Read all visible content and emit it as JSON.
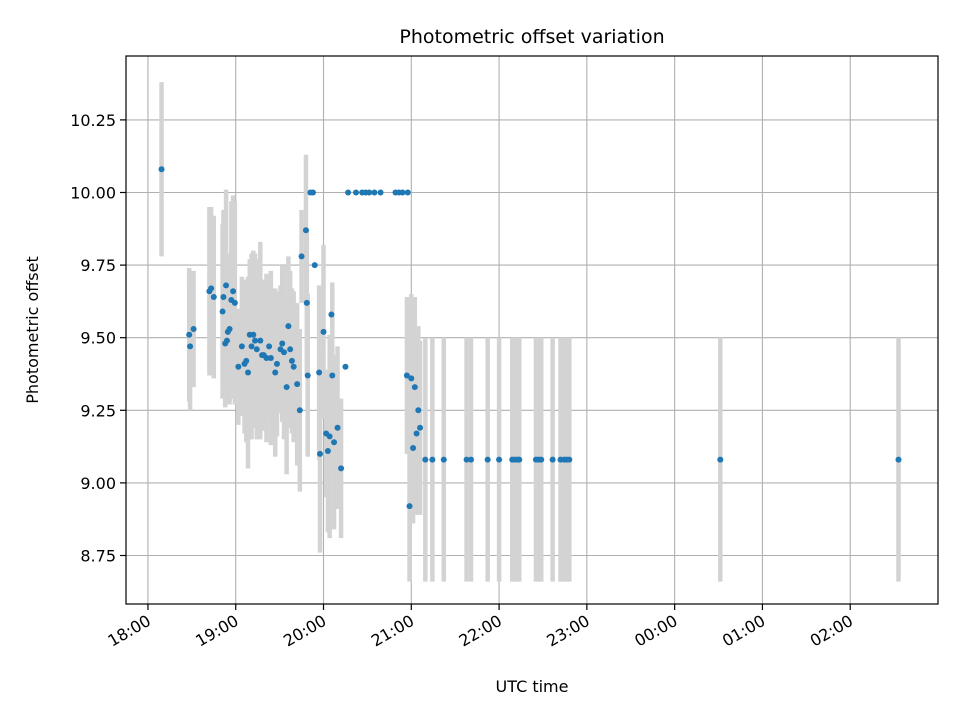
{
  "chart_data": {
    "type": "scatter",
    "title": "Photometric offset variation",
    "xlabel": "UTC time",
    "ylabel": "Photometric offset",
    "x_unit": "hours",
    "xlim": [
      17.75,
      27.0
    ],
    "ylim": [
      8.583,
      10.47
    ],
    "grid": true,
    "legend": "none",
    "x_ticks": [
      {
        "value": 18,
        "label": "18:00"
      },
      {
        "value": 19,
        "label": "19:00"
      },
      {
        "value": 20,
        "label": "20:00"
      },
      {
        "value": 21,
        "label": "21:00"
      },
      {
        "value": 22,
        "label": "22:00"
      },
      {
        "value": 23,
        "label": "23:00"
      },
      {
        "value": 24,
        "label": "00:00"
      },
      {
        "value": 25,
        "label": "01:00"
      },
      {
        "value": 26,
        "label": "02:00"
      }
    ],
    "y_ticks": [
      {
        "value": 8.75,
        "label": "8.75"
      },
      {
        "value": 9.0,
        "label": "9.00"
      },
      {
        "value": 9.25,
        "label": "9.25"
      },
      {
        "value": 9.5,
        "label": "9.50"
      },
      {
        "value": 9.75,
        "label": "9.75"
      },
      {
        "value": 10.0,
        "label": "10.00"
      },
      {
        "value": 10.25,
        "label": "10.25"
      }
    ],
    "colors": {
      "point": "#1f77b4",
      "errorbar": "#d3d3d3",
      "grid": "#b0b0b0",
      "axis": "#000000"
    },
    "points": [
      [
        18.155,
        10.08,
        0.3
      ],
      [
        18.47,
        9.51,
        0.23
      ],
      [
        18.48,
        9.47,
        0.22
      ],
      [
        18.52,
        9.53,
        0.2
      ],
      [
        18.7,
        9.66,
        0.29
      ],
      [
        18.72,
        9.67,
        0.28
      ],
      [
        18.75,
        9.64,
        0.28
      ],
      [
        18.85,
        9.59,
        0.3
      ],
      [
        18.86,
        9.64,
        0.3
      ],
      [
        18.88,
        9.48,
        0.22
      ],
      [
        18.89,
        9.68,
        0.33
      ],
      [
        18.9,
        9.49,
        0.22
      ],
      [
        18.91,
        9.52,
        0.24
      ],
      [
        18.93,
        9.53,
        0.26
      ],
      [
        18.95,
        9.63,
        0.34
      ],
      [
        18.97,
        9.66,
        0.33
      ],
      [
        18.99,
        9.62,
        0.35
      ],
      [
        19.03,
        9.4,
        0.2
      ],
      [
        19.07,
        9.47,
        0.24
      ],
      [
        19.1,
        9.41,
        0.24
      ],
      [
        19.12,
        9.42,
        0.28
      ],
      [
        19.14,
        9.38,
        0.33
      ],
      [
        19.16,
        9.51,
        0.26
      ],
      [
        19.18,
        9.47,
        0.32
      ],
      [
        19.2,
        9.51,
        0.29
      ],
      [
        19.22,
        9.49,
        0.3
      ],
      [
        19.24,
        9.46,
        0.31
      ],
      [
        19.28,
        9.49,
        0.34
      ],
      [
        19.3,
        9.44,
        0.25
      ],
      [
        19.32,
        9.44,
        0.26
      ],
      [
        19.35,
        9.43,
        0.29
      ],
      [
        19.38,
        9.47,
        0.23
      ],
      [
        19.4,
        9.43,
        0.3
      ],
      [
        19.45,
        9.38,
        0.29
      ],
      [
        19.47,
        9.41,
        0.25
      ],
      [
        19.51,
        9.46,
        0.22
      ],
      [
        19.53,
        9.48,
        0.27
      ],
      [
        19.55,
        9.45,
        0.3
      ],
      [
        19.58,
        9.33,
        0.3
      ],
      [
        19.6,
        9.54,
        0.24
      ],
      [
        19.62,
        9.46,
        0.27
      ],
      [
        19.64,
        9.42,
        0.25
      ],
      [
        19.66,
        9.4,
        0.26
      ],
      [
        19.7,
        9.34,
        0.28
      ],
      [
        19.73,
        9.25,
        0.28
      ],
      [
        19.75,
        9.78,
        0.16
      ],
      [
        19.8,
        9.87,
        0.26
      ],
      [
        19.81,
        9.62,
        0.25
      ],
      [
        19.82,
        9.37,
        0.28
      ],
      [
        19.85,
        10.0,
        0.0
      ],
      [
        19.88,
        10.0,
        0.0
      ],
      [
        19.9,
        9.75,
        0.0
      ],
      [
        19.95,
        9.38,
        0.3
      ],
      [
        19.96,
        9.1,
        0.34
      ],
      [
        20.0,
        9.52,
        0.3
      ],
      [
        20.03,
        9.17,
        0.22
      ],
      [
        20.05,
        9.11,
        0.28
      ],
      [
        20.07,
        9.16,
        0.35
      ],
      [
        20.09,
        9.58,
        0.0
      ],
      [
        20.1,
        9.37,
        0.32
      ],
      [
        20.12,
        9.14,
        0.3
      ],
      [
        20.16,
        9.19,
        0.28
      ],
      [
        20.2,
        9.05,
        0.24
      ],
      [
        20.25,
        9.4,
        0.0
      ],
      [
        20.28,
        10.0,
        0.0
      ],
      [
        20.37,
        10.0,
        0.0
      ],
      [
        20.44,
        10.0,
        0.0
      ],
      [
        20.48,
        10.0,
        0.0
      ],
      [
        20.52,
        10.0,
        0.0
      ],
      [
        20.58,
        10.0,
        0.0
      ],
      [
        20.65,
        10.0,
        0.0
      ],
      [
        20.82,
        10.0,
        0.0
      ],
      [
        20.86,
        10.0,
        0.0
      ],
      [
        20.9,
        10.0,
        0.0
      ],
      [
        20.96,
        10.0,
        0.0
      ],
      [
        20.95,
        9.37,
        0.27
      ],
      [
        20.98,
        8.92,
        0.26
      ],
      [
        21.0,
        9.36,
        0.29
      ],
      [
        21.02,
        9.12,
        0.26
      ],
      [
        21.04,
        9.33,
        0.31
      ],
      [
        21.06,
        9.17,
        0.28
      ],
      [
        21.08,
        9.25,
        0.29
      ],
      [
        21.1,
        9.19,
        0.3
      ],
      [
        21.16,
        9.08,
        0.42
      ],
      [
        21.24,
        9.08,
        0.42
      ],
      [
        21.37,
        9.08,
        0.42
      ],
      [
        21.63,
        9.08,
        0.42
      ],
      [
        21.68,
        9.08,
        0.42
      ],
      [
        21.87,
        9.08,
        0.42
      ],
      [
        22.0,
        9.08,
        0.42
      ],
      [
        22.15,
        9.08,
        0.42
      ],
      [
        22.18,
        9.08,
        0.42
      ],
      [
        22.21,
        9.08,
        0.42
      ],
      [
        22.23,
        9.08,
        0.42
      ],
      [
        22.42,
        9.08,
        0.42
      ],
      [
        22.45,
        9.08,
        0.42
      ],
      [
        22.48,
        9.08,
        0.42
      ],
      [
        22.61,
        9.08,
        0.42
      ],
      [
        22.7,
        9.08,
        0.42
      ],
      [
        22.74,
        9.08,
        0.42
      ],
      [
        22.77,
        9.08,
        0.42
      ],
      [
        22.8,
        9.08,
        0.42
      ],
      [
        24.52,
        9.08,
        0.42
      ],
      [
        26.55,
        9.08,
        0.42
      ]
    ]
  }
}
